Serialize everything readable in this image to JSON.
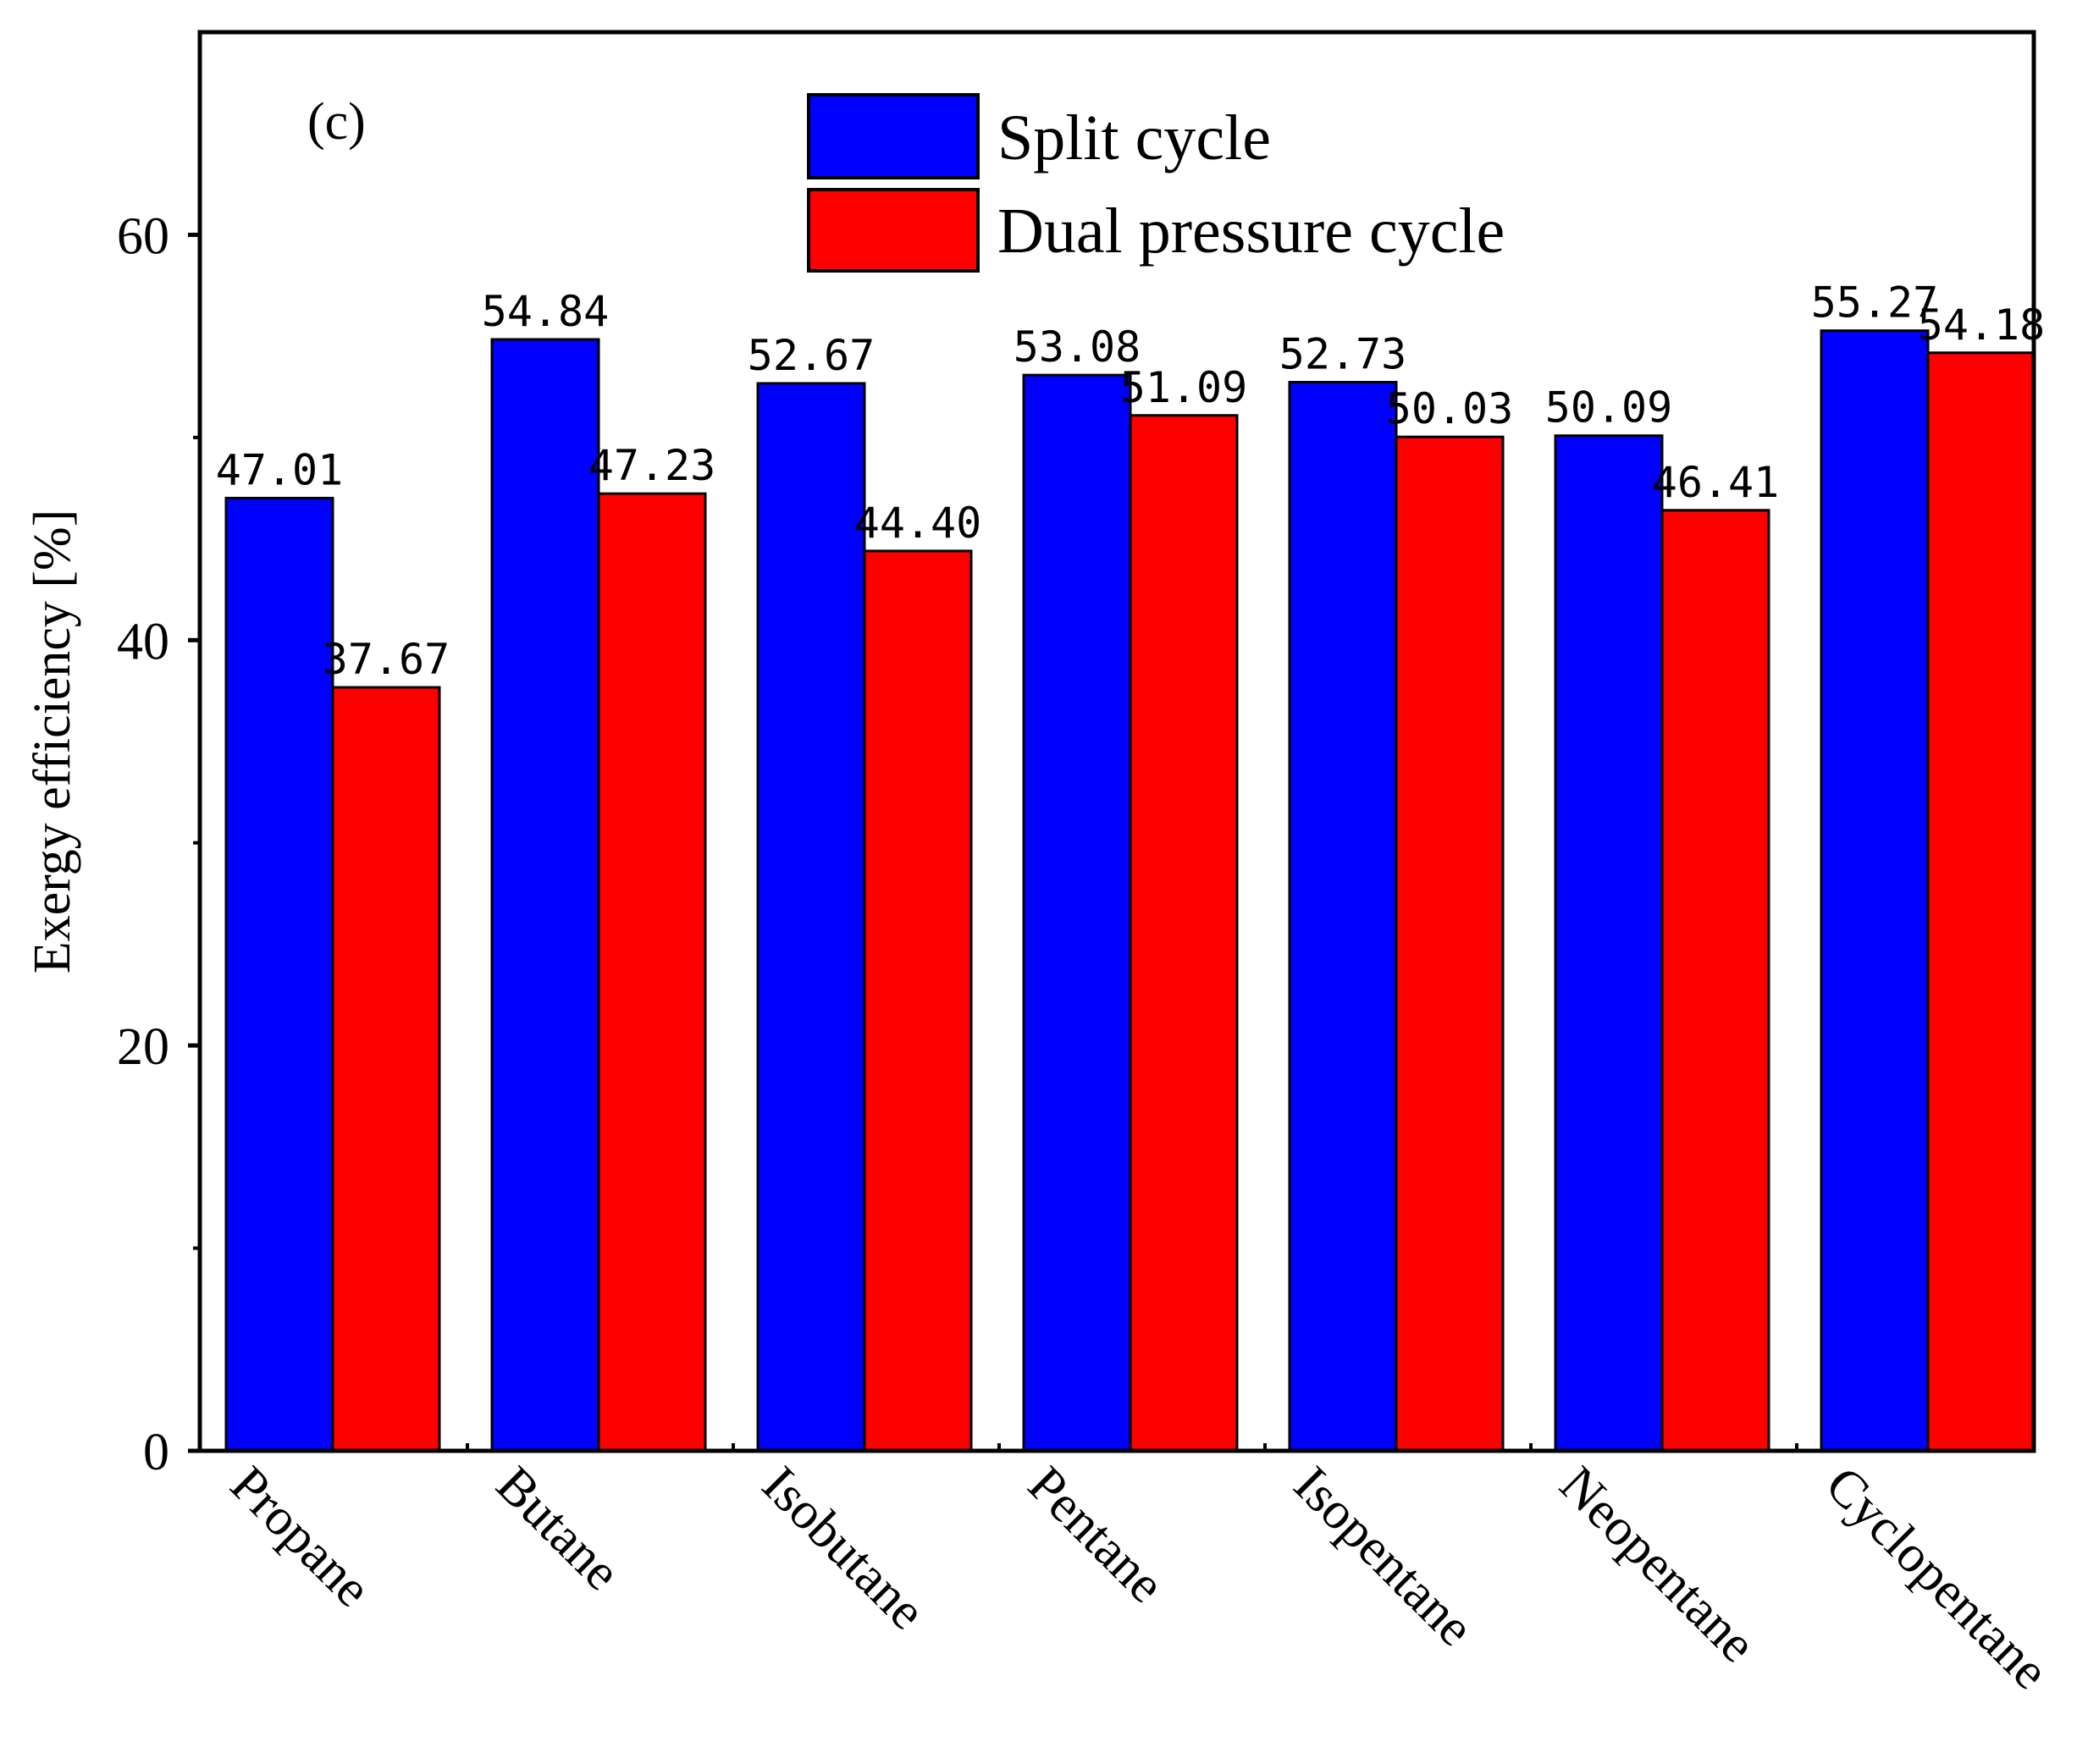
{
  "chart_data": {
    "type": "bar",
    "panel_label": "(c)",
    "title": "",
    "xlabel": "",
    "ylabel": "Exergy efficiency [%]",
    "ylim": [
      0,
      70
    ],
    "yticks": [
      0,
      20,
      40,
      60
    ],
    "yminor_ticks": [
      10,
      30,
      50
    ],
    "grid": false,
    "legend_position": "top-center",
    "categories": [
      "Propane",
      "Butane",
      "Isobutane",
      "Pentane",
      "Isopentane",
      "Neopentane",
      "Cyclopentane"
    ],
    "series": [
      {
        "name": "Split cycle",
        "color": "#0000ff",
        "values": [
          47.01,
          54.84,
          52.67,
          53.08,
          52.73,
          50.09,
          55.27
        ],
        "labels": [
          "47.01",
          "54.84",
          "52.67",
          "53.08",
          "52.73",
          "50.09",
          "55.27"
        ]
      },
      {
        "name": "Dual pressure cycle",
        "color": "#ff0000",
        "values": [
          37.67,
          47.23,
          44.4,
          51.09,
          50.03,
          46.41,
          54.18
        ],
        "labels": [
          "37.67",
          "47.23",
          "44.40",
          "51.09",
          "50.03",
          "46.41",
          "54.18"
        ]
      }
    ]
  }
}
